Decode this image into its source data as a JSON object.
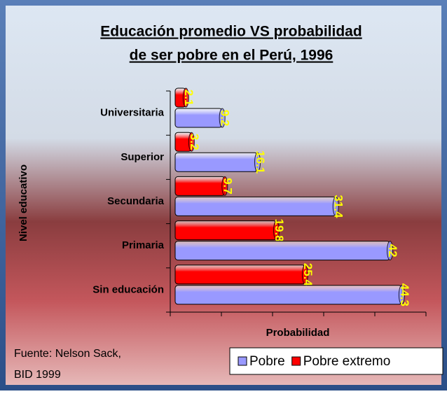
{
  "chart_data": {
    "type": "bar",
    "orientation": "horizontal",
    "title": [
      "Educación promedio VS probabilidad",
      "de ser pobre en el Perú, 1996"
    ],
    "x_label": "Probabilidad",
    "y_label": "Nivel educativo",
    "categories": [
      "Universitaria",
      "Superior",
      "Secundaria",
      "Primaria",
      "Sin educación"
    ],
    "series": [
      {
        "name": "Pobre",
        "color": "#9999ff",
        "values": [
          9.2,
          16.1,
          31.4,
          42,
          44.3
        ]
      },
      {
        "name": "Pobre extremo",
        "color": "#ff0000",
        "values": [
          2.1,
          3.2,
          9.7,
          19.8,
          25.4
        ]
      }
    ],
    "xlim": [
      0,
      50
    ],
    "xticks": [
      0,
      10,
      20,
      30,
      40,
      50
    ],
    "source": [
      "Fuente: Nelson Sack,",
      "BID 1999"
    ],
    "legend": "bottom-right",
    "value_label_color": "#ffff00"
  }
}
